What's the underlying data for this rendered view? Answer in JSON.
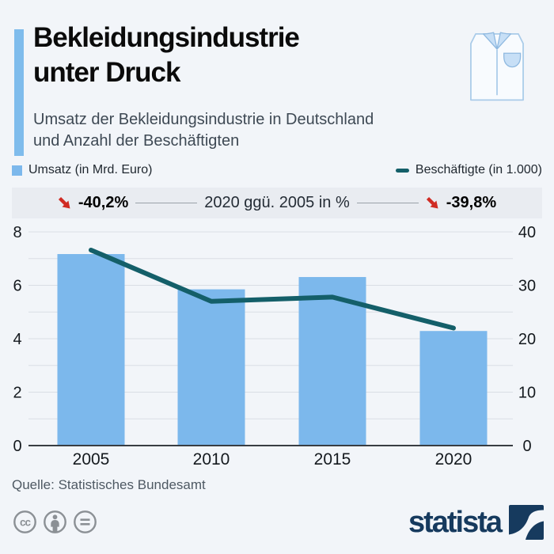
{
  "colors": {
    "background": "#f2f5f9",
    "accent_blue": "#7fbcec",
    "bar_blue": "#7cb8ec",
    "line_teal": "#145f69",
    "arrow_red": "#d02b23",
    "banner_bg": "#e9ecf1",
    "brand_navy": "#163a5e"
  },
  "header": {
    "title_line1": "Bekleidungsindustrie",
    "title_line2": "unter Druck",
    "subtitle_line1": "Umsatz der Bekleidungsindustrie in Deutschland",
    "subtitle_line2": "und Anzahl der Beschäftigten"
  },
  "legend": {
    "items": [
      {
        "label": "Umsatz (in Mrd. Euro)",
        "marker": "square",
        "color": "#7cb8ec"
      },
      {
        "label": "Beschäftigte (in 1.000)",
        "marker": "dash",
        "color": "#145f69"
      }
    ]
  },
  "banner": {
    "left_value": "-40,2%",
    "center_label": "2020 ggü. 2005 in %",
    "right_value": "-39,8%"
  },
  "chart_data": {
    "type": "bar",
    "subtype": "bar+line dual axis",
    "categories": [
      "2005",
      "2010",
      "2015",
      "2020"
    ],
    "series": [
      {
        "name": "Umsatz (in Mrd. Euro)",
        "render": "bar",
        "axis": "left",
        "color": "#7cb8ec",
        "values": [
          7.17,
          5.85,
          6.31,
          4.29
        ]
      },
      {
        "name": "Beschäftigte (in 1.000)",
        "render": "line",
        "axis": "right",
        "color": "#145f69",
        "values": [
          36.6,
          27.0,
          27.8,
          22.0
        ]
      }
    ],
    "left_axis": {
      "min": 0,
      "max": 8,
      "ticks": [
        0,
        2,
        4,
        6,
        8
      ],
      "minor_step": 1
    },
    "right_axis": {
      "min": 0,
      "max": 40,
      "ticks": [
        0,
        10,
        20,
        30,
        40
      ],
      "minor_step": 5
    },
    "grid": true,
    "legend_position": "top"
  },
  "footer": {
    "source": "Quelle: Statistisches Bundesamt",
    "license_icons": [
      "cc-icon",
      "attribution-person-icon",
      "equals-icon"
    ],
    "brand_text": "statista"
  }
}
